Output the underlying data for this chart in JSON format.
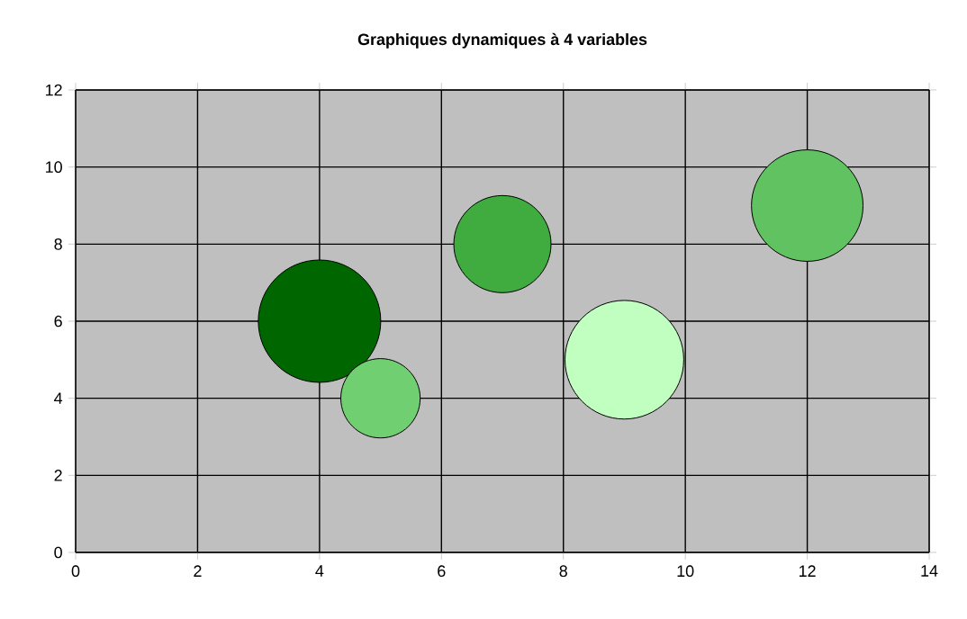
{
  "chart_data": {
    "type": "bubble",
    "title": "Graphiques dynamiques à 4 variables",
    "x": [
      4,
      5,
      7,
      9,
      12
    ],
    "values": [
      6,
      4,
      8,
      5,
      9
    ],
    "sizes": [
      1,
      0.42,
      0.63,
      0.94,
      0.83
    ],
    "colors": [
      "#006600",
      "#70cf70",
      "#40ac40",
      "#c0ffc0",
      "#60c260"
    ],
    "xlim": [
      0,
      14
    ],
    "xticks": [
      0,
      2,
      4,
      6,
      8,
      10,
      12,
      14
    ],
    "ylim": [
      0,
      12
    ],
    "yticks": [
      0,
      2,
      4,
      6,
      8,
      10,
      12
    ],
    "grid": true
  }
}
